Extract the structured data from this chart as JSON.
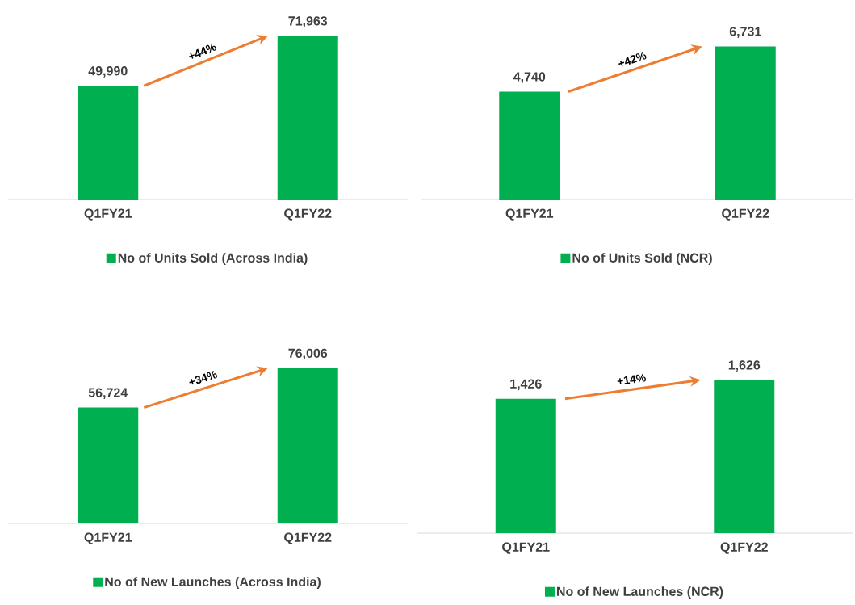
{
  "chart_data": [
    {
      "type": "bar",
      "categories": [
        "Q1FY21",
        "Q1FY22"
      ],
      "series": [
        {
          "name": "No of Units Sold (Across India)",
          "color": "#00b050",
          "values": [
            49990,
            71963
          ],
          "value_labels": [
            "49,990",
            "71,963"
          ]
        }
      ],
      "annotations": [
        "+44%"
      ],
      "legend": "bottom"
    },
    {
      "type": "bar",
      "categories": [
        "Q1FY21",
        "Q1FY22"
      ],
      "series": [
        {
          "name": "No of Units Sold (NCR)",
          "color": "#00b050",
          "values": [
            4740,
            6731
          ],
          "value_labels": [
            "4,740",
            "6,731"
          ]
        }
      ],
      "annotations": [
        "+42%"
      ],
      "legend": "bottom"
    },
    {
      "type": "bar",
      "categories": [
        "Q1FY21",
        "Q1FY22"
      ],
      "series": [
        {
          "name": "No of New Launches (Across India)",
          "color": "#00b050",
          "values": [
            56724,
            76006
          ],
          "value_labels": [
            "56,724",
            "76,006"
          ]
        }
      ],
      "annotations": [
        "+34%"
      ],
      "legend": "bottom"
    },
    {
      "type": "bar",
      "categories": [
        "Q1FY21",
        "Q1FY22"
      ],
      "series": [
        {
          "name": "No of New Launches (NCR)",
          "color": "#00b050",
          "values": [
            1426,
            1626
          ],
          "value_labels": [
            "1,426",
            "1,626"
          ]
        }
      ],
      "annotations": [
        "+14%"
      ],
      "legend": "bottom"
    }
  ]
}
